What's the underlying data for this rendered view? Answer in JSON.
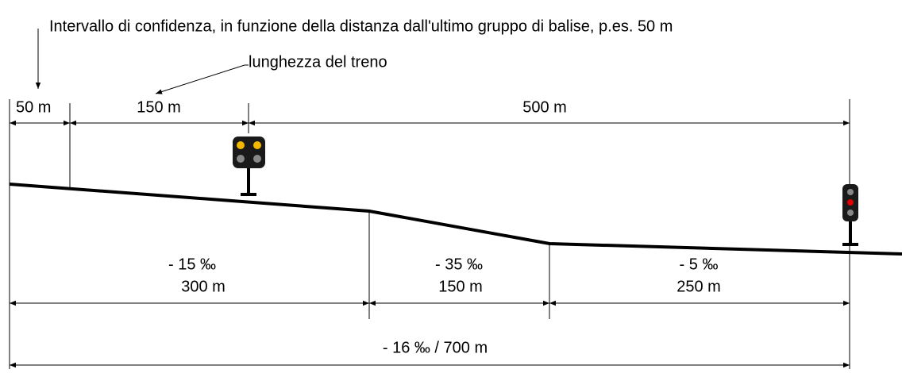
{
  "annotations": {
    "confidence": "Intervallo di confidenza, in funzione della distanza dall'ultimo gruppo di balise, p.es. 50 m",
    "train_length": "lunghezza del treno"
  },
  "top_dimensions": [
    "50 m",
    "150 m",
    "500 m"
  ],
  "segments": [
    {
      "gradient": "- 15 ‰",
      "length": "300 m"
    },
    {
      "gradient": "- 35 ‰",
      "length": "150 m"
    },
    {
      "gradient": "- 5 ‰",
      "length": "250 m"
    }
  ],
  "total": "- 16 ‰ / 700 m"
}
